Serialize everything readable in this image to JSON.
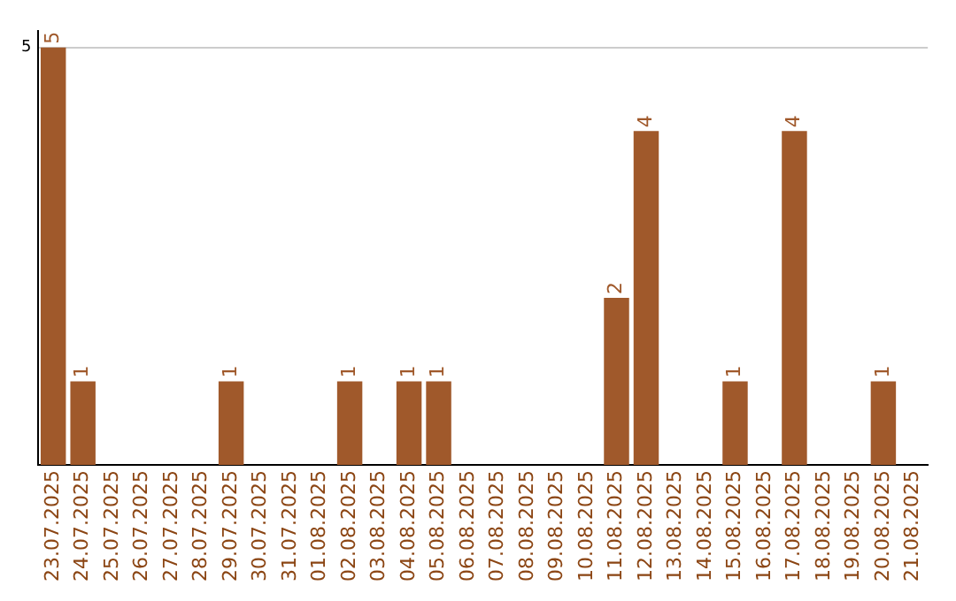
{
  "chart_data": {
    "type": "bar",
    "categories": [
      "23.07.2025",
      "24.07.2025",
      "25.07.2025",
      "26.07.2025",
      "27.07.2025",
      "28.07.2025",
      "29.07.2025",
      "30.07.2025",
      "31.07.2025",
      "01.08.2025",
      "02.08.2025",
      "03.08.2025",
      "04.08.2025",
      "05.08.2025",
      "06.08.2025",
      "07.08.2025",
      "08.08.2025",
      "09.08.2025",
      "10.08.2025",
      "11.08.2025",
      "12.08.2025",
      "13.08.2025",
      "14.08.2025",
      "15.08.2025",
      "16.08.2025",
      "17.08.2025",
      "18.08.2025",
      "19.08.2025",
      "20.08.2025",
      "21.08.2025"
    ],
    "values": [
      5,
      1,
      null,
      null,
      null,
      null,
      1,
      null,
      null,
      null,
      1,
      null,
      1,
      1,
      null,
      null,
      null,
      null,
      null,
      2,
      4,
      null,
      null,
      1,
      null,
      4,
      null,
      null,
      1,
      null
    ],
    "color": "#a0592b",
    "ylim": [
      0,
      5.2
    ],
    "yticks": [
      5
    ],
    "grid": "y",
    "data_labels": true,
    "legend": false
  }
}
